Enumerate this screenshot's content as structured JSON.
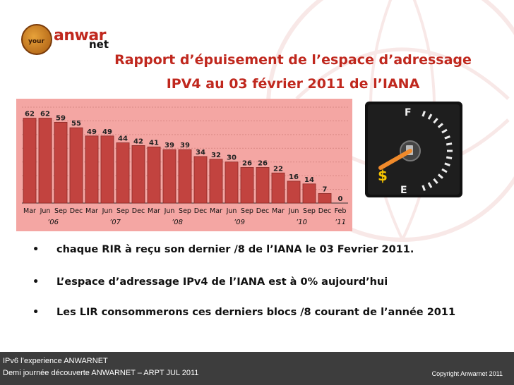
{
  "branding": {
    "logo_circle_text": "your",
    "logo_name": "anwar",
    "logo_sub": "net"
  },
  "slide": {
    "title_line1": "Rapport d’épuisement de l’espace d’adressage",
    "title_line2": "IPV4 au 03 février 2011 de l’IANA"
  },
  "bullets": [
    "chaque RIR à reçu son dernier /8 de l’IANA le 03 Fevrier 2011.",
    "L’espace d’adressage IPv4 de l’IANA est à 0% aujourd’hui",
    "Les LIR consommerons ces derniers blocs /8 courant de l’année 2011"
  ],
  "gauge": {
    "full_label": "F",
    "empty_label": "E",
    "dollar_sign": "$"
  },
  "footer": {
    "line1": "IPv6 l’experience ANWARNET",
    "line2": "Demi journée découverte ANWARNET – ARPT JUL 2011",
    "copyright": "Copyright   Anwarnet 2011"
  },
  "colors": {
    "title": "#c0281e",
    "bar": "#c2433f",
    "chart_bg": "#f4a6a3",
    "footer_bg": "#3d3d3d"
  },
  "chart_data": {
    "type": "bar",
    "categories": [
      "Mar",
      "Jun",
      "Sep",
      "Dec",
      "Mar",
      "Jun",
      "Sep",
      "Dec",
      "Mar",
      "Jun",
      "Sep",
      "Dec",
      "Mar",
      "Jun",
      "Sep",
      "Dec",
      "Mar",
      "Jun",
      "Sep",
      "Dec",
      "Feb"
    ],
    "values": [
      62,
      62,
      59,
      55,
      49,
      49,
      44,
      42,
      41,
      39,
      39,
      34,
      32,
      30,
      26,
      26,
      22,
      16,
      14,
      7,
      0
    ],
    "year_labels": [
      "’06",
      "’07",
      "’08",
      "’09",
      "’10",
      "’11"
    ],
    "ylim": [
      0,
      70
    ],
    "grid": true,
    "data_labels": true
  }
}
